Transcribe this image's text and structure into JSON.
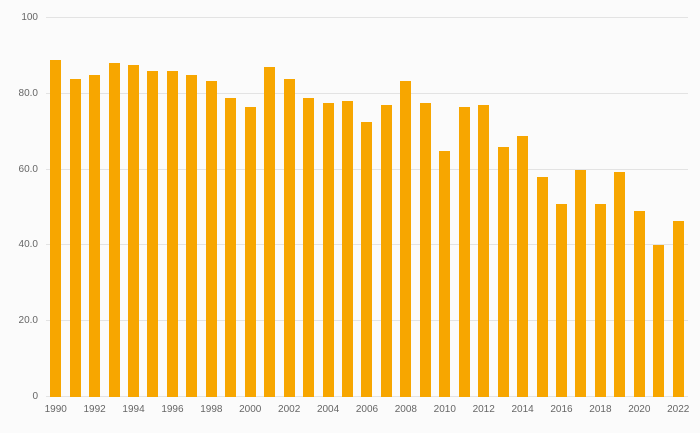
{
  "chart_data": {
    "type": "bar",
    "title": "",
    "xlabel": "",
    "ylabel": "",
    "ylim": [
      0,
      100
    ],
    "grid": true,
    "legend": false,
    "bar_color": "#F7A600",
    "grid_color": "#e3e3e3",
    "tick_color": "#666666",
    "background_color": "#fbfbfb",
    "x_tick_interval": 2,
    "y_ticks": [
      {
        "value": 0,
        "label": "0"
      },
      {
        "value": 20,
        "label": "20.0"
      },
      {
        "value": 40,
        "label": "40.0"
      },
      {
        "value": 60,
        "label": "60.0"
      },
      {
        "value": 80,
        "label": "80.0"
      },
      {
        "value": 100,
        "label": "100"
      }
    ],
    "categories": [
      1990,
      1991,
      1992,
      1993,
      1994,
      1995,
      1996,
      1997,
      1998,
      1999,
      2000,
      2001,
      2002,
      2003,
      2004,
      2005,
      2006,
      2007,
      2008,
      2009,
      2010,
      2011,
      2012,
      2013,
      2014,
      2015,
      2016,
      2017,
      2018,
      2019,
      2020,
      2021,
      2022
    ],
    "values": [
      89,
      84,
      85,
      88,
      87.5,
      86,
      86,
      85,
      83.5,
      79,
      76.5,
      87,
      84,
      79,
      77.5,
      78,
      72.5,
      77,
      83.5,
      77.5,
      65,
      76.5,
      77,
      66,
      69,
      58,
      51,
      60,
      51,
      59.5,
      49,
      40,
      46.5
    ]
  }
}
